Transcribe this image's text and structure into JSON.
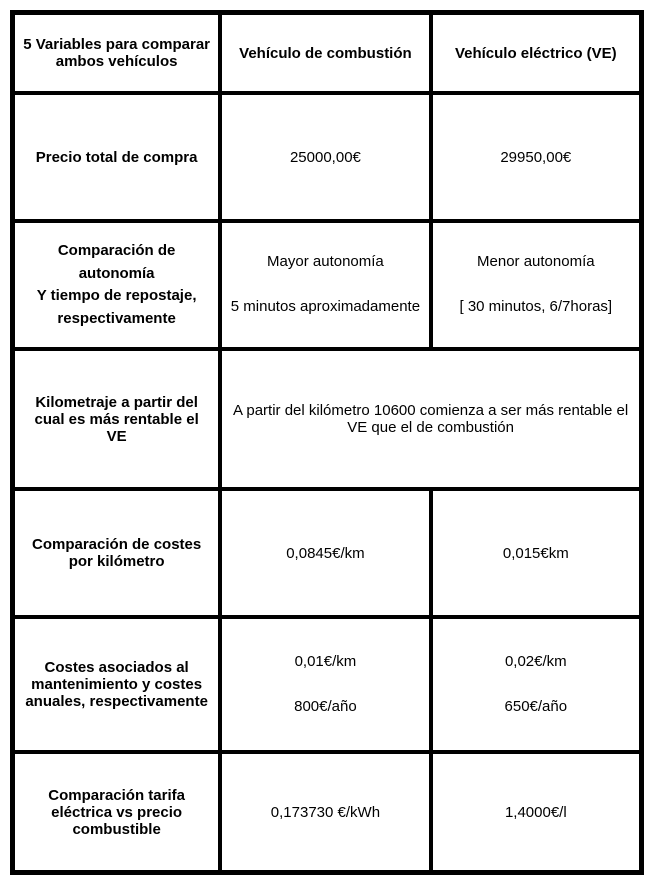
{
  "table": {
    "headers": {
      "col1": "5 Variables para comparar ambos vehículos",
      "col2": "Vehículo de combustión",
      "col3": "Vehículo eléctrico (VE)"
    },
    "rows": {
      "price": {
        "label": "Precio total de compra",
        "combustion": "25000,00€",
        "electric": "29950,00€"
      },
      "autonomy": {
        "label_line1": "Comparación de autonomía",
        "label_line2": "Y tiempo de repostaje, respectivamente",
        "combustion_line1": "Mayor autonomía",
        "combustion_line2": "5 minutos aproximadamente",
        "electric_line1": "Menor autonomía",
        "electric_line2": "[ 30 minutos, 6/7horas]"
      },
      "mileage": {
        "label": "Kilometraje a partir del cual es más rentable el VE",
        "spanned": "A partir del kilómetro 10600 comienza a ser más rentable el VE que el de combustión"
      },
      "cost_per_km": {
        "label": "Comparación de costes por kilómetro",
        "combustion": "0,0845€/km",
        "electric": "0,015€km"
      },
      "maintenance": {
        "label": "Costes asociados al mantenimiento y costes anuales, respectivamente",
        "combustion_line1": "0,01€/km",
        "combustion_line2": "800€/año",
        "electric_line1": "0,02€/km",
        "electric_line2": "650€/año"
      },
      "tariff": {
        "label": "Comparación tarifa eléctrica vs precio combustible",
        "combustion": "0,173730 €/kWh",
        "electric": "1,4000€/l"
      }
    }
  },
  "styling": {
    "border_color": "#000000",
    "background_color": "#ffffff",
    "text_color": "#000000",
    "font_size_pt": 15,
    "font_family": "Arial",
    "table_border_width": 3,
    "cell_border_width": 2,
    "col_widths_percent": [
      33,
      33.5,
      33.5
    ]
  }
}
